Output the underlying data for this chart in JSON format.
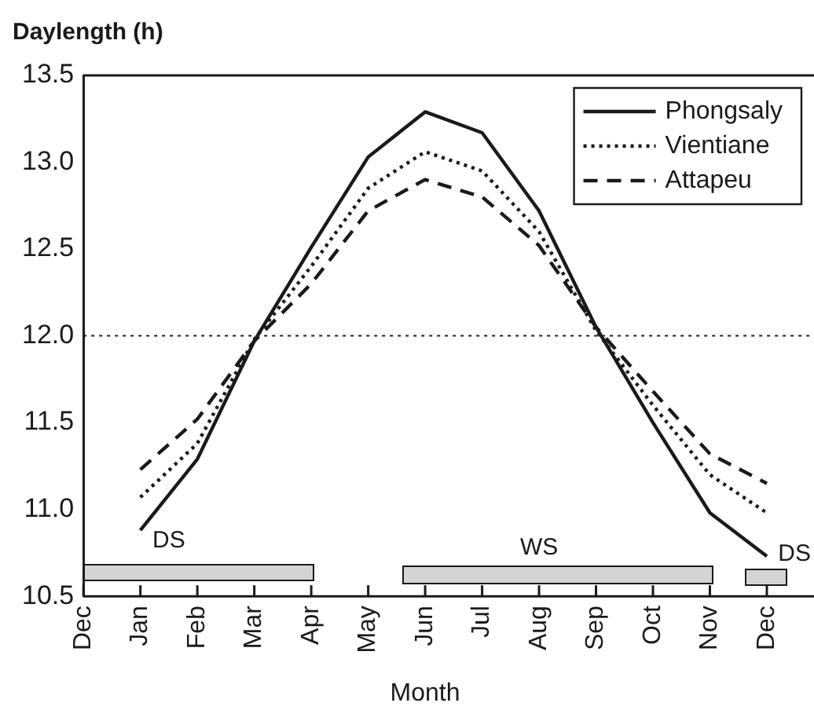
{
  "chart_data": {
    "type": "line",
    "title": "Daylength (h)",
    "xlabel": "Month",
    "categories": [
      "Dec",
      "Jan",
      "Feb",
      "Mar",
      "Apr",
      "May",
      "Jun",
      "Jul",
      "Aug",
      "Sep",
      "Oct",
      "Nov",
      "Dec"
    ],
    "series": [
      {
        "name": "Phongsaly",
        "color": "#1a1a1a",
        "line_style": "solid",
        "values": [
          null,
          10.88,
          11.29,
          11.97,
          12.51,
          13.03,
          13.29,
          13.17,
          12.72,
          12.05,
          11.5,
          10.98,
          10.73
        ]
      },
      {
        "name": "Vientiane",
        "color": "#1a1a1a",
        "line_style": "dotted",
        "values": [
          null,
          11.07,
          11.38,
          11.98,
          12.4,
          12.85,
          13.06,
          12.95,
          12.6,
          12.03,
          11.6,
          11.2,
          10.98
        ]
      },
      {
        "name": "Attapeu",
        "color": "#1a1a1a",
        "line_style": "dashed",
        "values": [
          null,
          11.23,
          11.52,
          11.97,
          12.3,
          12.72,
          12.9,
          12.8,
          12.52,
          12.05,
          11.68,
          11.32,
          11.15
        ]
      }
    ],
    "ylim": [
      10.5,
      13.5
    ],
    "yticks": [
      10.5,
      {
        "value": 11,
        "label": "11.0"
      },
      11.5,
      {
        "value": 12,
        "label": "12.0"
      },
      12.5,
      {
        "value": 13,
        "label": "13.0"
      },
      13.5
    ],
    "ref_lines": [
      {
        "axis": "y",
        "value": 12,
        "line_style": "dotted",
        "color": "#1a1a1a"
      }
    ],
    "annotations": [
      "DS",
      "WS",
      "DS"
    ],
    "marker": "none",
    "grid": false,
    "legend": "top right"
  }
}
